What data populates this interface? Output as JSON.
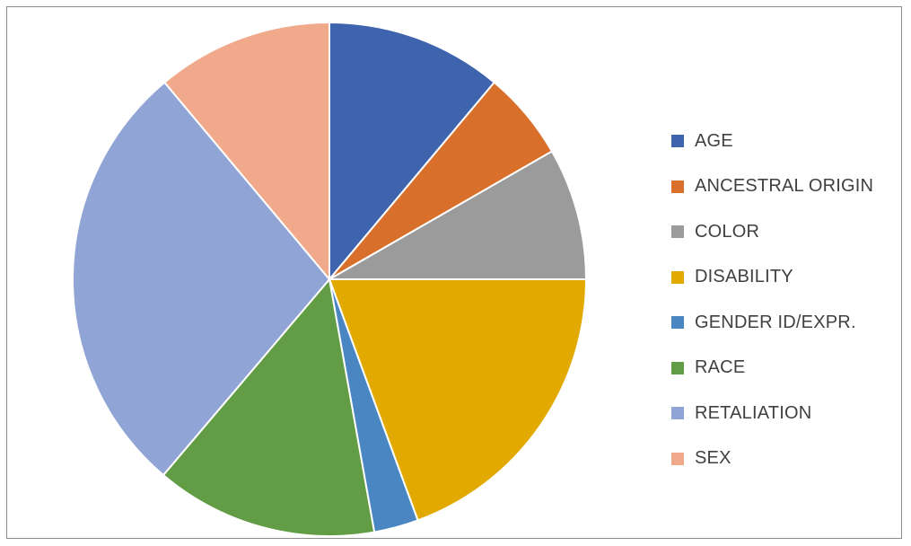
{
  "chart_data": {
    "type": "pie",
    "title": "",
    "legend_position": "right",
    "categories": [
      "AGE",
      "ANCESTRAL ORIGIN",
      "COLOR",
      "DISABILITY",
      "GENDER ID/EXPR.",
      "RACE",
      "RETALIATION",
      "SEX"
    ],
    "values": [
      11.1,
      5.6,
      8.3,
      19.4,
      2.8,
      14.0,
      27.7,
      11.1
    ],
    "colors": [
      "#3e64ae",
      "#d86f2b",
      "#9b9b9b",
      "#e2aa00",
      "#4a86c2",
      "#629c44",
      "#90a4d6",
      "#f0a98a"
    ]
  }
}
